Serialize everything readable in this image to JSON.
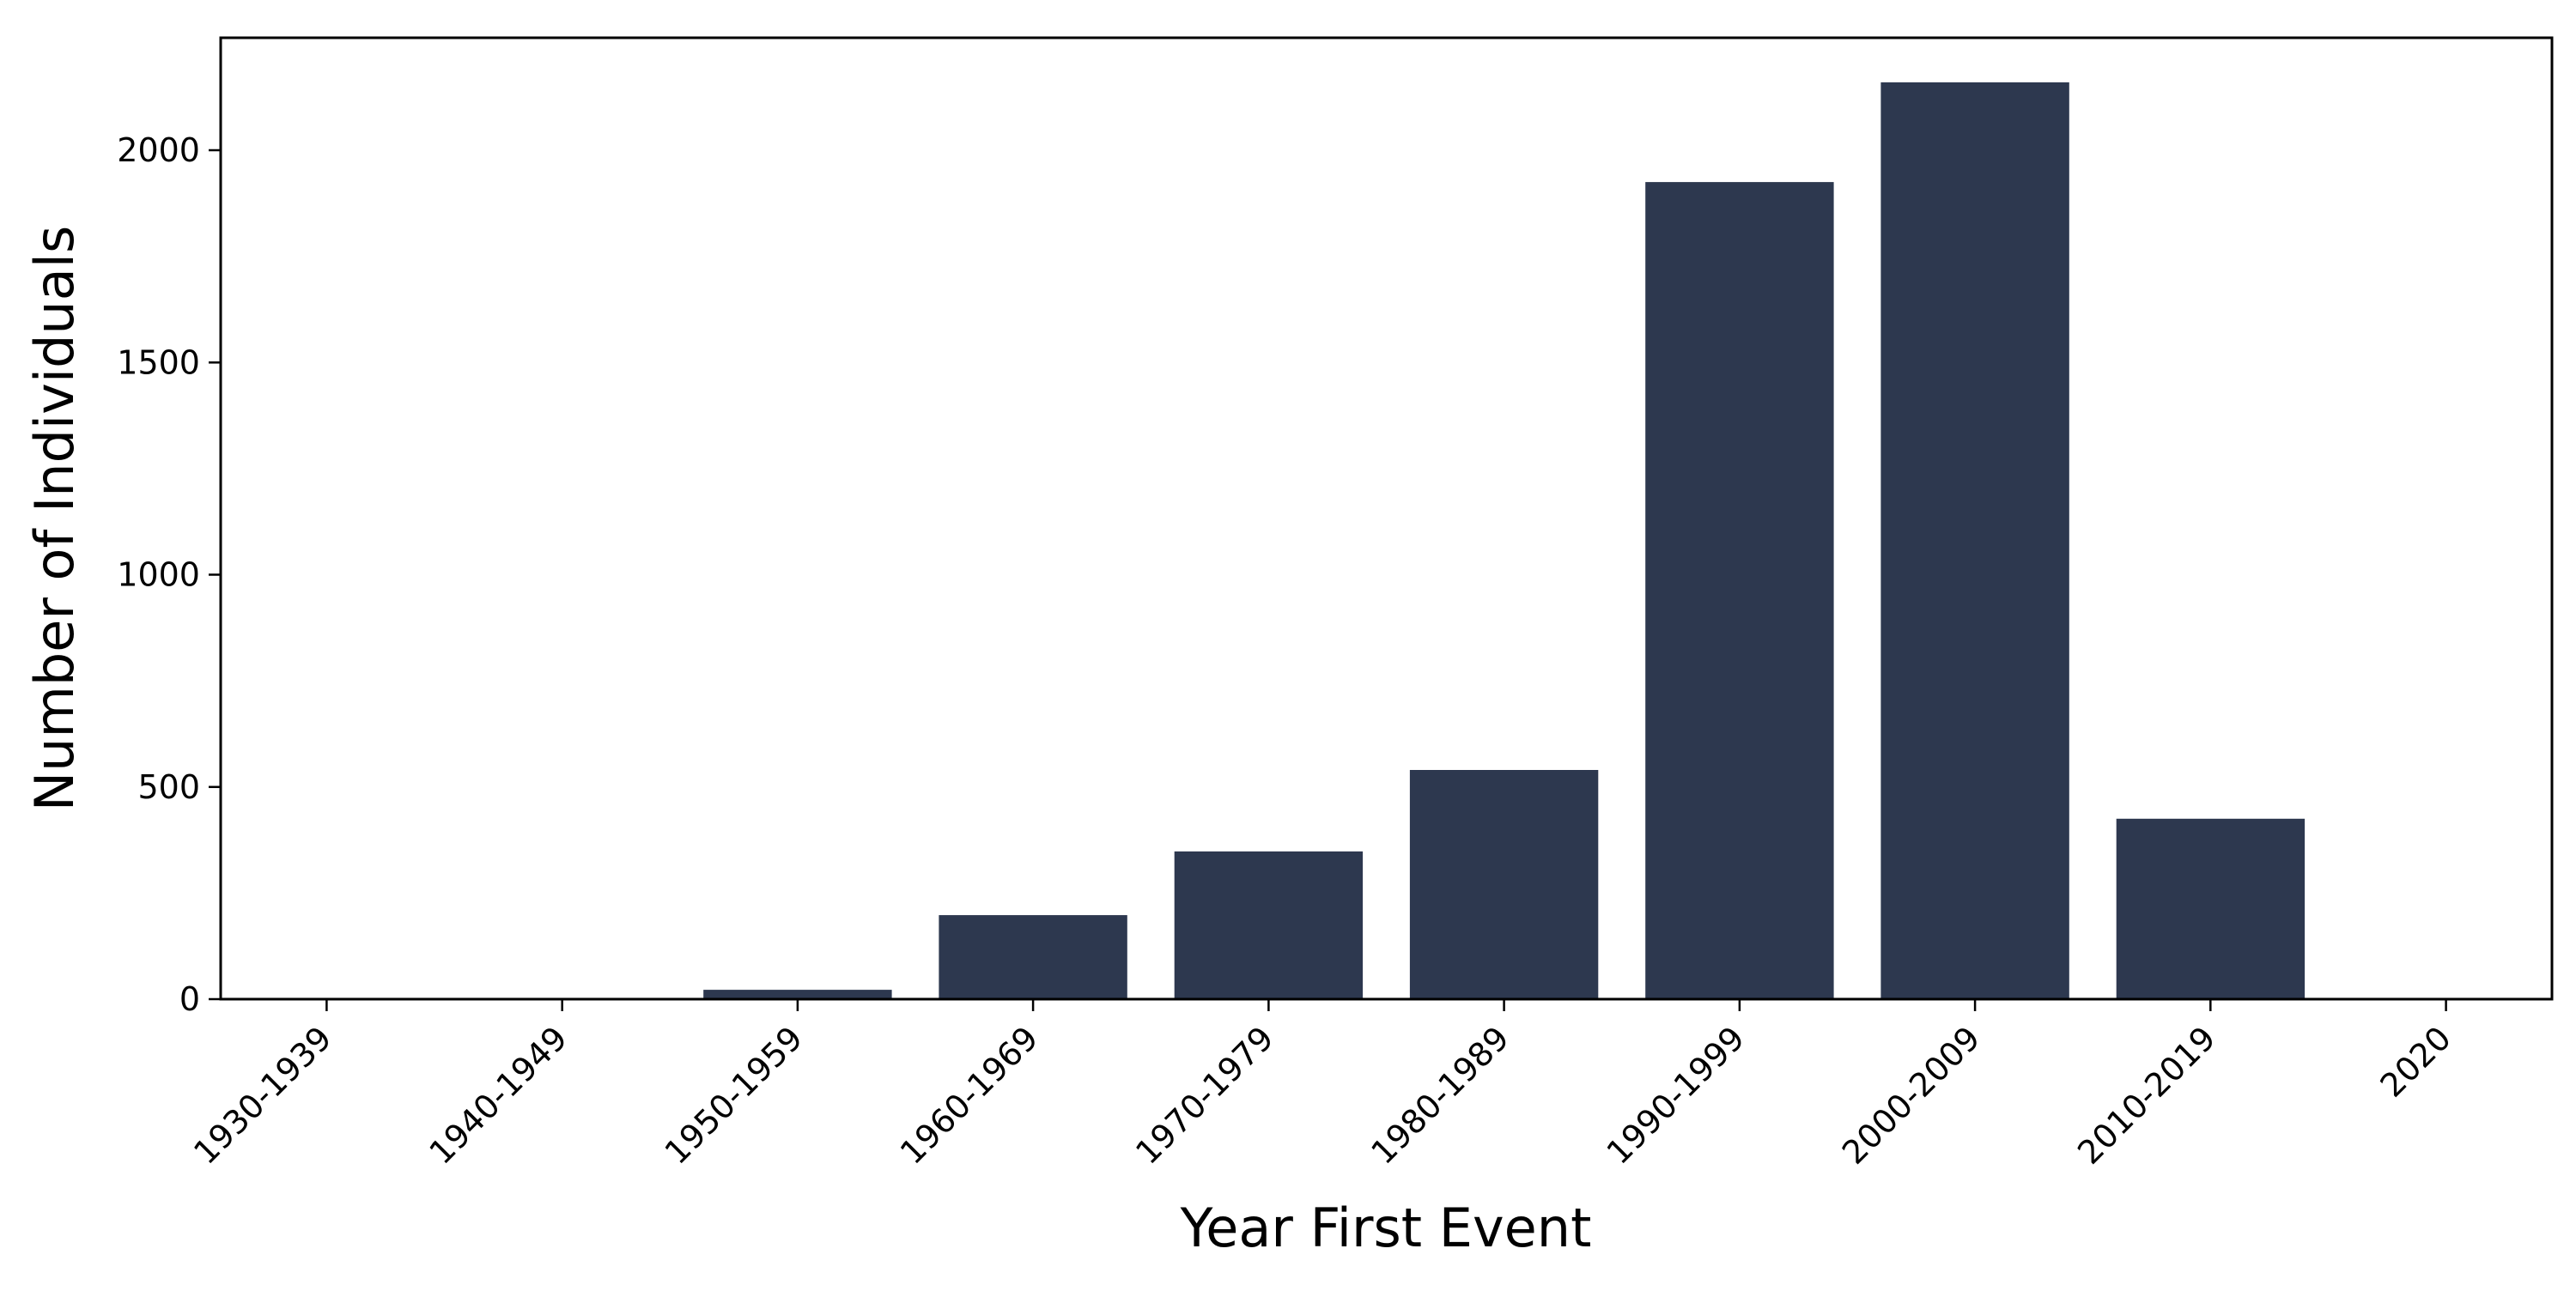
{
  "chart_data": {
    "type": "bar",
    "title": "",
    "xlabel": "Year First Event",
    "ylabel": "Number of Individuals",
    "categories": [
      "1930-1939",
      "1940-1949",
      "1950-1959",
      "1960-1969",
      "1970-1979",
      "1980-1989",
      "1990-1999",
      "2000-2009",
      "2010-2019",
      "2020"
    ],
    "values": [
      1,
      1,
      22,
      198,
      348,
      540,
      1925,
      2160,
      425,
      0
    ],
    "ylim": [
      0,
      2265
    ],
    "yticks": [
      0,
      500,
      1000,
      1500,
      2000
    ],
    "grid": false,
    "legend": "none",
    "bar_color": "#2d384f"
  }
}
